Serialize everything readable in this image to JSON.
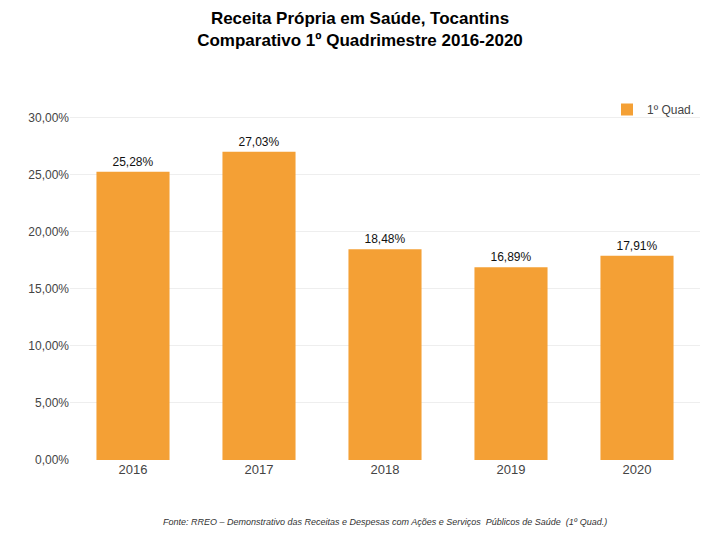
{
  "chart_data": {
    "type": "bar",
    "title": "Receita Própria em Saúde, Tocantins",
    "subtitle": "Comparativo 1º Quadrimestre 2016-2020",
    "categories": [
      "2016",
      "2017",
      "2018",
      "2019",
      "2020"
    ],
    "series": [
      {
        "name": "1º Quad.",
        "color": "#F4A035",
        "values": [
          25.28,
          27.03,
          18.48,
          16.89,
          17.91
        ],
        "value_labels": [
          "25,28%",
          "27,03%",
          "18,48%",
          "16,89%",
          "17,91%"
        ]
      }
    ],
    "ylim": [
      0,
      32
    ],
    "yticks": [
      {
        "value": 0,
        "label": "0,00%"
      },
      {
        "value": 5,
        "label": "5,00%"
      },
      {
        "value": 10,
        "label": "10,00%"
      },
      {
        "value": 15,
        "label": "15,00%"
      },
      {
        "value": 20,
        "label": "20,00%"
      },
      {
        "value": 25,
        "label": "25,00%"
      },
      {
        "value": 30,
        "label": "30,00%"
      }
    ],
    "grid": true,
    "legend": "upper right",
    "annotations": [
      "Fonte: RREO – Demonstrativo das Receitas e Despesas com Ações e Serviços  Públicos de Saúde  (1º Quad.)"
    ]
  }
}
